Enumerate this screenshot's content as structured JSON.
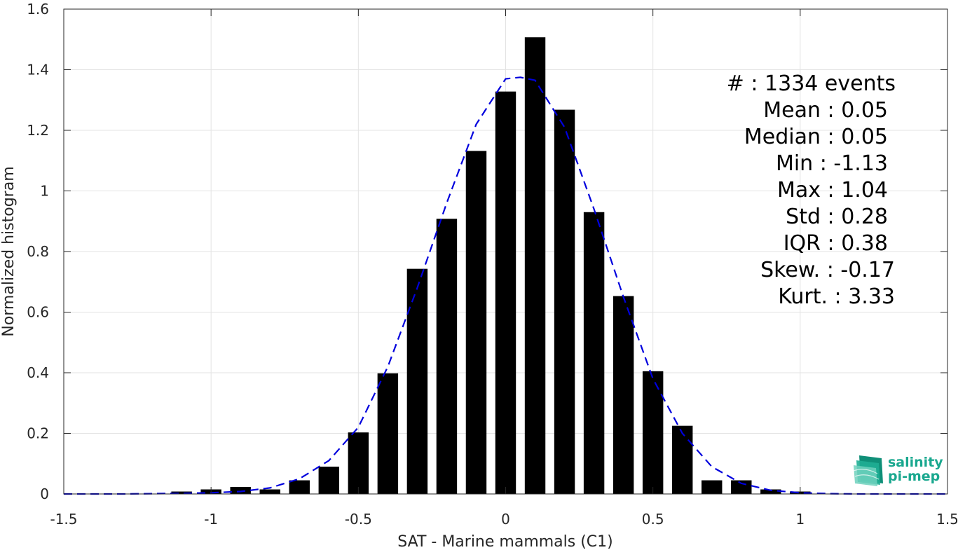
{
  "chart_data": {
    "type": "bar",
    "xlabel": "SAT - Marine mammals (C1)",
    "ylabel": "Normalized histogram",
    "xlim": [
      -1.5,
      1.5
    ],
    "ylim": [
      0,
      1.6
    ],
    "xticks": [
      -1.5,
      -1,
      -0.5,
      0,
      0.5,
      1,
      1.5
    ],
    "xtick_labels": [
      "-1.5",
      "-1",
      "-0.5",
      "0",
      "0.5",
      "1",
      "1.5"
    ],
    "yticks": [
      0,
      0.2,
      0.4,
      0.6,
      0.8,
      1,
      1.2,
      1.4,
      1.6
    ],
    "ytick_labels": [
      "0",
      "0.2",
      "0.4",
      "0.6",
      "0.8",
      "1",
      "1.2",
      "1.4",
      "1.6"
    ],
    "grid": true,
    "bar_width": 0.07,
    "bar_color": "#000000",
    "bars": {
      "x": [
        -1.1,
        -1.0,
        -0.9,
        -0.8,
        -0.7,
        -0.6,
        -0.5,
        -0.4,
        -0.3,
        -0.2,
        -0.1,
        0.0,
        0.1,
        0.2,
        0.3,
        0.4,
        0.5,
        0.6,
        0.7,
        0.8,
        0.9,
        1.0
      ],
      "values": [
        0.008,
        0.015,
        0.023,
        0.015,
        0.045,
        0.09,
        0.203,
        0.398,
        0.743,
        0.908,
        1.132,
        1.328,
        1.507,
        1.268,
        0.93,
        0.653,
        0.405,
        0.225,
        0.045,
        0.045,
        0.015,
        0.008
      ]
    },
    "fit_curve": {
      "style": "dashed",
      "color": "#0000dd",
      "x": [
        -1.5,
        -1.4,
        -1.3,
        -1.2,
        -1.1,
        -1.0,
        -0.9,
        -0.8,
        -0.7,
        -0.6,
        -0.5,
        -0.4,
        -0.3,
        -0.2,
        -0.1,
        0.0,
        0.05,
        0.1,
        0.2,
        0.3,
        0.4,
        0.5,
        0.6,
        0.7,
        0.8,
        0.9,
        1.0,
        1.1,
        1.2,
        1.3,
        1.4,
        1.5
      ],
      "y": [
        0.0,
        0.0,
        0.0,
        0.001,
        0.002,
        0.004,
        0.008,
        0.02,
        0.05,
        0.11,
        0.22,
        0.42,
        0.68,
        0.96,
        1.22,
        1.37,
        1.375,
        1.365,
        1.21,
        0.94,
        0.65,
        0.38,
        0.2,
        0.09,
        0.035,
        0.012,
        0.004,
        0.001,
        0.0,
        0.0,
        0.0,
        0.0
      ]
    }
  },
  "stats": [
    {
      "label": "#  : 1334 events"
    },
    {
      "label": "Mean : 0.05"
    },
    {
      "label": "Median : 0.05"
    },
    {
      "label": "Min : -1.13"
    },
    {
      "label": "Max : 1.04"
    },
    {
      "label": "Std : 0.28"
    },
    {
      "label": "IQR : 0.38"
    },
    {
      "label": "Skew. : -0.17"
    },
    {
      "label": "Kurt. : 3.33"
    }
  ],
  "logo": {
    "line1": "salinity",
    "line2": "pi-mep",
    "icon": "wave-layers-icon",
    "color": "#1aa88f"
  }
}
